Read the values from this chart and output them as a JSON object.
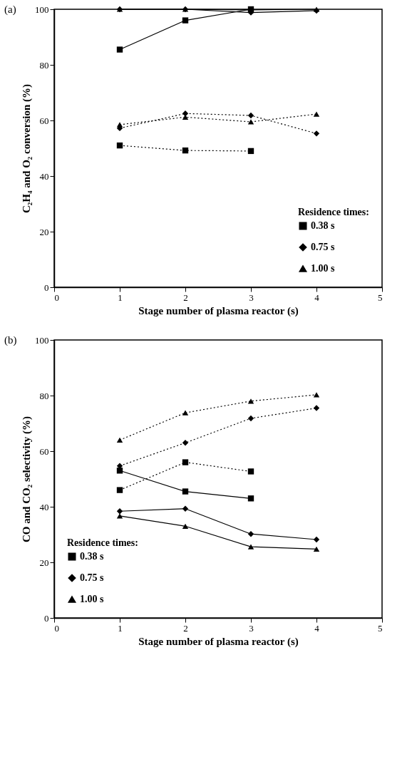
{
  "chart_data": [
    {
      "type": "line",
      "title": "(a)",
      "xlabel": "Stage number of plasma reactor (s)",
      "ylabel": "C₂H₄ and O₂ conversion (%)",
      "legend_title": "Residence times:",
      "legend": "bottom right",
      "grid": false,
      "x": [
        1,
        2,
        3,
        4
      ],
      "xlim": [
        0,
        5
      ],
      "xticks": [
        0,
        1,
        2,
        3,
        4,
        5
      ],
      "ylim": [
        0,
        100
      ],
      "yticks": [
        0,
        20,
        40,
        60,
        80,
        100
      ],
      "series": [
        {
          "name": "0.38 s",
          "color": "#000000",
          "marker": "square",
          "line_style": "solid",
          "values": [
            85.5,
            96,
            100,
            null
          ]
        },
        {
          "name": "0.75 s",
          "color": "#000000",
          "marker": "diamond",
          "line_style": "solid",
          "values": [
            100,
            100,
            98.8,
            99.5
          ]
        },
        {
          "name": "1.00 s",
          "color": "#000000",
          "marker": "triangle",
          "line_style": "solid",
          "values": [
            100,
            100,
            99.8,
            100
          ]
        },
        {
          "color": "#000000",
          "marker": "square",
          "line_style": "dotted",
          "values": [
            51,
            49.2,
            49,
            null
          ]
        },
        {
          "color": "#000000",
          "marker": "diamond",
          "line_style": "dotted",
          "values": [
            57.2,
            62.5,
            61.8,
            55.3
          ]
        },
        {
          "color": "#000000",
          "marker": "triangle",
          "line_style": "dotted",
          "values": [
            58.5,
            61.2,
            59.5,
            62.3
          ]
        }
      ]
    },
    {
      "type": "line",
      "title": "(b)",
      "xlabel": "Stage number of plasma reactor (s)",
      "ylabel": "CO and CO₂ selectivity (%)",
      "legend_title": "Residence times:",
      "legend": "bottom left",
      "grid": false,
      "x": [
        1,
        2,
        3,
        4
      ],
      "xlim": [
        0,
        5
      ],
      "xticks": [
        0,
        1,
        2,
        3,
        4,
        5
      ],
      "ylim": [
        0,
        100
      ],
      "yticks": [
        0,
        20,
        40,
        60,
        80,
        100
      ],
      "series": [
        {
          "name": "0.38 s",
          "color": "#000000",
          "marker": "square",
          "line_style": "solid",
          "values": [
            53,
            45.5,
            43,
            null
          ]
        },
        {
          "name": "0.75 s",
          "color": "#000000",
          "marker": "diamond",
          "line_style": "solid",
          "values": [
            38.4,
            39.3,
            30.2,
            28.2
          ]
        },
        {
          "name": "1.00 s",
          "color": "#000000",
          "marker": "triangle",
          "line_style": "solid",
          "values": [
            36.7,
            33,
            25.6,
            24.8
          ]
        },
        {
          "color": "#000000",
          "marker": "square",
          "line_style": "dotted",
          "values": [
            46,
            56,
            52.7,
            null
          ]
        },
        {
          "color": "#000000",
          "marker": "diamond",
          "line_style": "dotted",
          "values": [
            54.7,
            63,
            71.8,
            75.5
          ]
        },
        {
          "color": "#000000",
          "marker": "triangle",
          "line_style": "dotted",
          "values": [
            64,
            73.8,
            78,
            80.3
          ]
        }
      ]
    }
  ]
}
